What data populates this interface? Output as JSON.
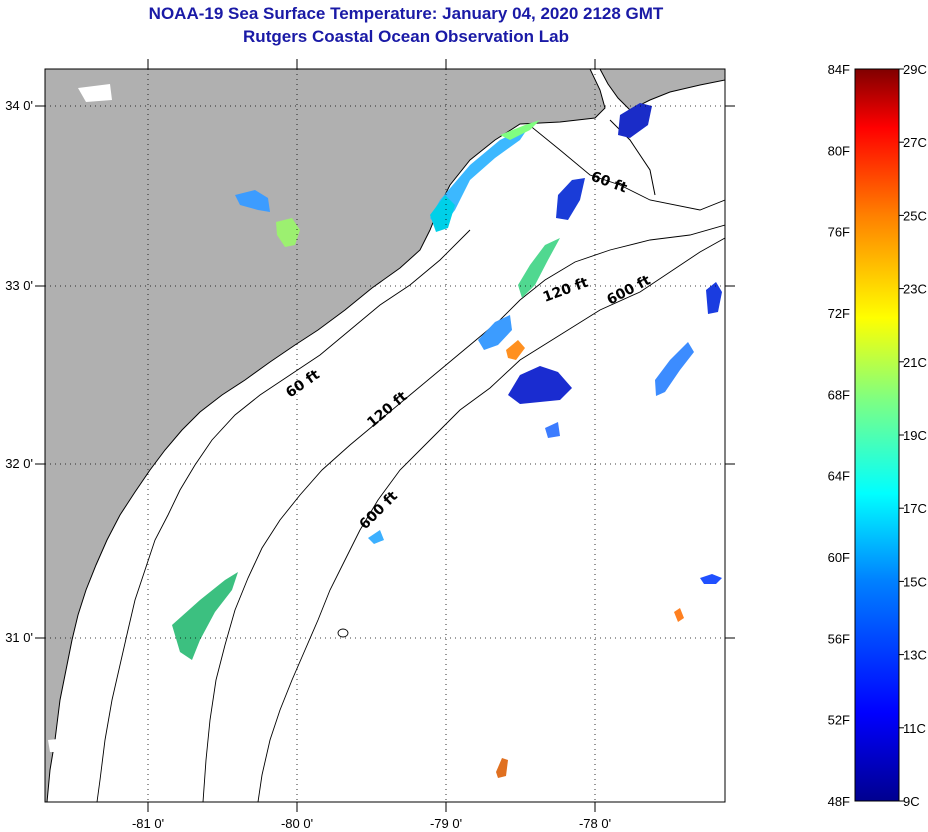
{
  "title": "NOAA-19 Sea Surface Temperature:  January 04, 2020 2128 GMT",
  "subtitle": "Rutgers Coastal Ocean Observation Lab",
  "map": {
    "lon_ticks": [
      "-81 0'",
      "-80 0'",
      "-79 0'",
      "-78 0'"
    ],
    "lat_ticks": [
      "34 0'",
      "33 0'",
      "32 0'",
      "31 0'"
    ],
    "depth_contours": [
      {
        "label": "60 ft"
      },
      {
        "label": "120 ft"
      },
      {
        "label": "600 ft"
      }
    ],
    "land_color": "#b0b0b0",
    "ocean_color": "#ffffff"
  },
  "colorbar": {
    "fahrenheit_ticks": [
      "84F",
      "80F",
      "76F",
      "72F",
      "68F",
      "64F",
      "60F",
      "56F",
      "52F",
      "48F"
    ],
    "celsius_ticks": [
      "29C",
      "27C",
      "25C",
      "23C",
      "21C",
      "19C",
      "17C",
      "15C",
      "13C",
      "11C",
      "9C"
    ],
    "colors": [
      "#00008f",
      "#0000ff",
      "#0080ff",
      "#00ffff",
      "#80ff80",
      "#ffff00",
      "#ff8000",
      "#ff0000",
      "#800000"
    ]
  }
}
